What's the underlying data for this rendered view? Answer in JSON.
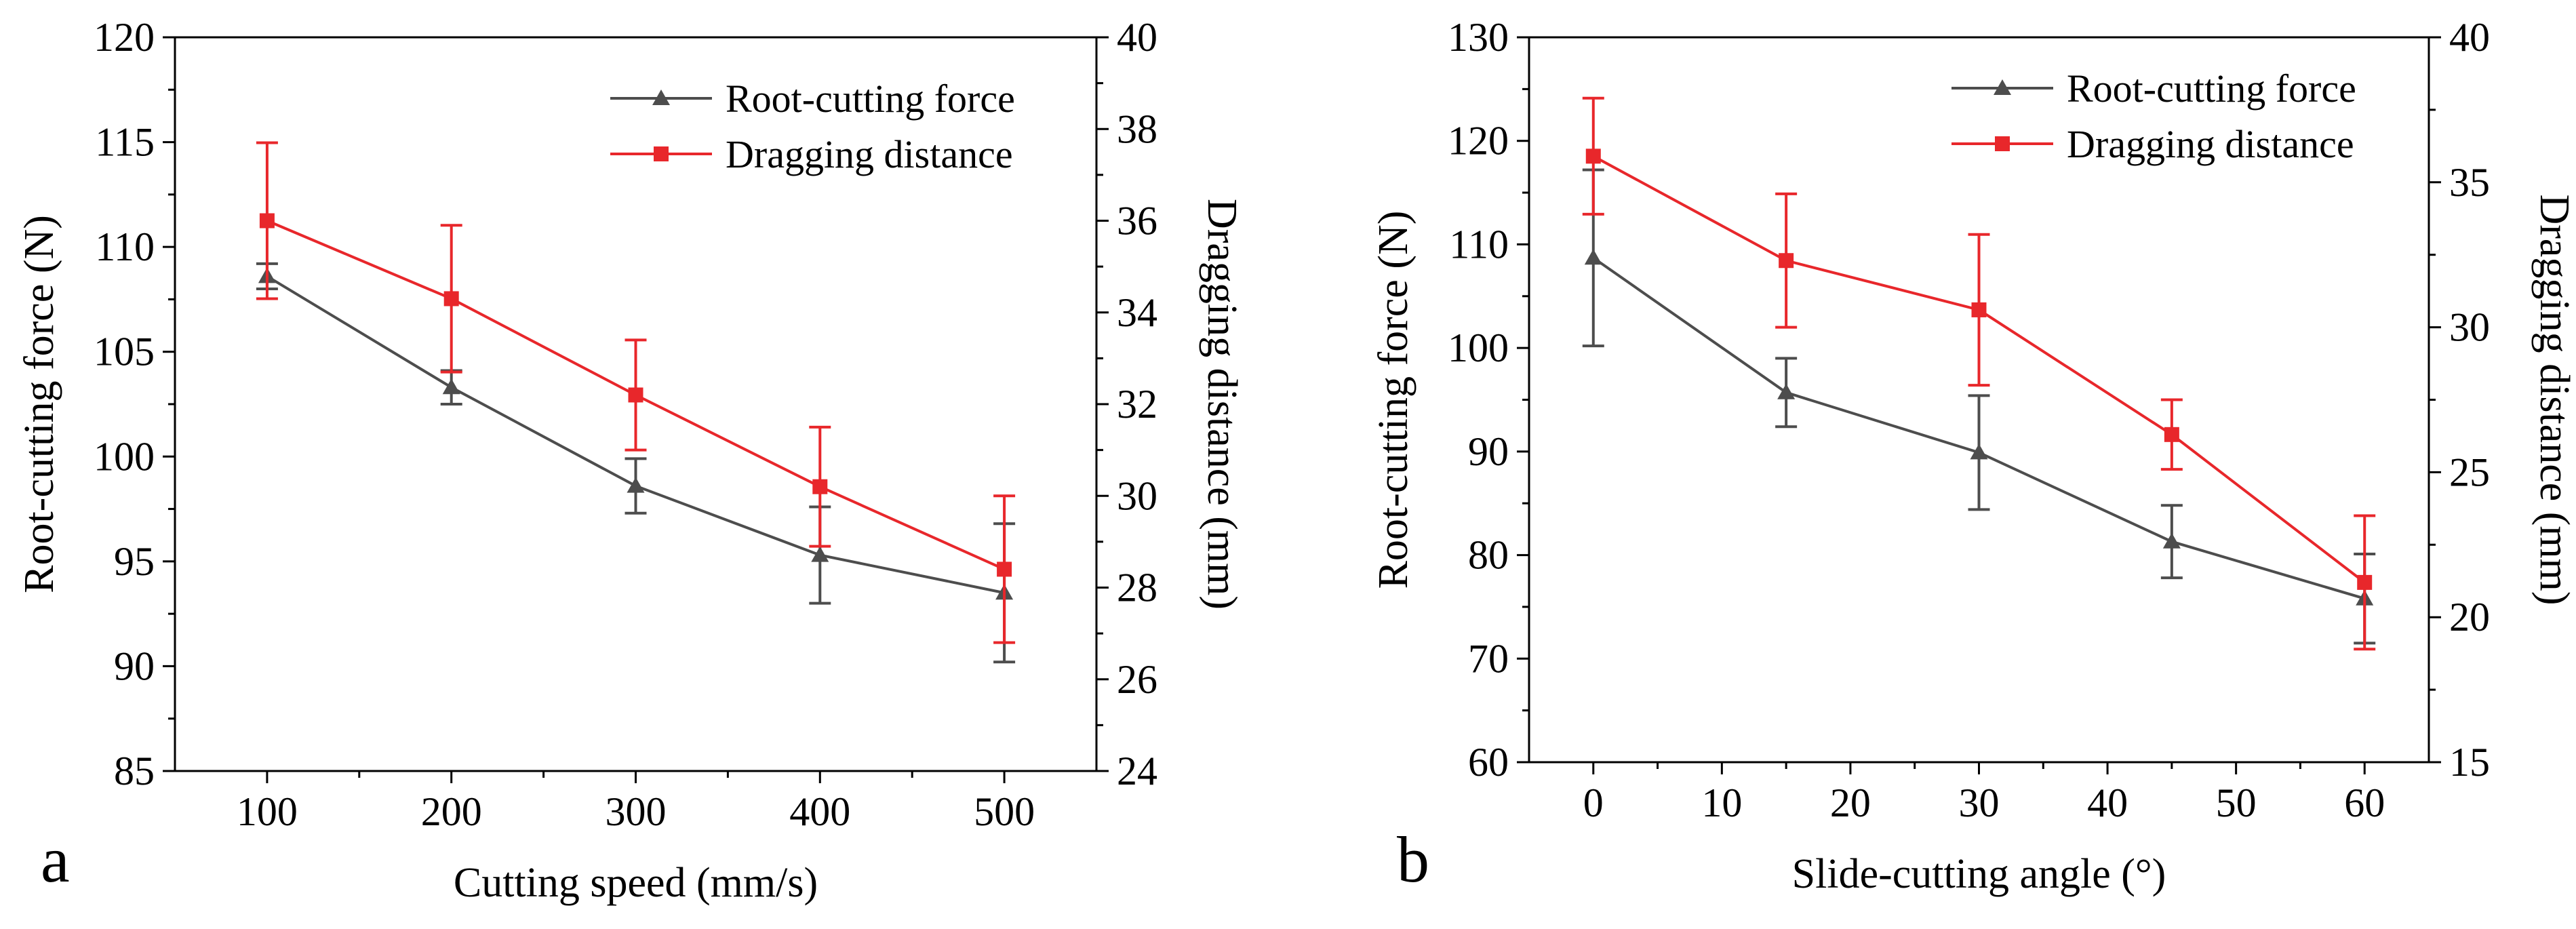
{
  "chart_data": [
    {
      "type": "line",
      "panel_label": "a",
      "xlabel": "Cutting speed (mm/s)",
      "ylabel": "Root-cutting force (N)",
      "y2label": "Dragging distance (mm)",
      "x": [
        100,
        200,
        300,
        400,
        500
      ],
      "xlim": [
        50,
        550
      ],
      "xticks": [
        100,
        200,
        300,
        400,
        500
      ],
      "ylim": [
        85,
        120
      ],
      "yticks": [
        85,
        90,
        95,
        100,
        105,
        110,
        115,
        120
      ],
      "y2lim": [
        24,
        40
      ],
      "y2ticks": [
        24,
        26,
        28,
        30,
        32,
        34,
        36,
        38,
        40
      ],
      "legend_position": "top-right",
      "series": [
        {
          "name": "Root-cutting force",
          "axis": "left",
          "color": "#4d4d4d",
          "marker": "triangle",
          "values": [
            108.6,
            103.3,
            98.6,
            95.3,
            93.5
          ],
          "errors": [
            0.6,
            0.8,
            1.3,
            2.3,
            3.3
          ]
        },
        {
          "name": "Dragging distance",
          "axis": "right",
          "color": "#e8272b",
          "marker": "square",
          "values": [
            36.0,
            34.3,
            32.2,
            30.2,
            28.4
          ],
          "errors": [
            1.7,
            1.6,
            1.2,
            1.3,
            1.6
          ]
        }
      ]
    },
    {
      "type": "line",
      "panel_label": "b",
      "xlabel": "Slide-cutting angle (°)",
      "ylabel": "Root-cutting force (N)",
      "y2label": "Dragging distance (mm)",
      "x": [
        0,
        15,
        30,
        45,
        60
      ],
      "xlim": [
        -5,
        65
      ],
      "xticks": [
        0,
        10,
        20,
        30,
        40,
        50,
        60
      ],
      "ylim": [
        60,
        130
      ],
      "yticks": [
        60,
        70,
        80,
        90,
        100,
        110,
        120,
        130
      ],
      "y2lim": [
        15,
        40
      ],
      "y2ticks": [
        15,
        20,
        25,
        30,
        35,
        40
      ],
      "legend_position": "top-right",
      "series": [
        {
          "name": "Root-cutting force",
          "axis": "left",
          "color": "#4d4d4d",
          "marker": "triangle",
          "values": [
            108.7,
            95.7,
            89.9,
            81.3,
            75.8
          ],
          "errors": [
            8.5,
            3.3,
            5.5,
            3.5,
            4.3
          ]
        },
        {
          "name": "Dragging distance",
          "axis": "right",
          "color": "#e8272b",
          "marker": "square",
          "values": [
            35.9,
            32.3,
            30.6,
            26.3,
            21.2
          ],
          "errors": [
            2.0,
            2.3,
            2.6,
            1.2,
            2.3
          ]
        }
      ]
    }
  ]
}
